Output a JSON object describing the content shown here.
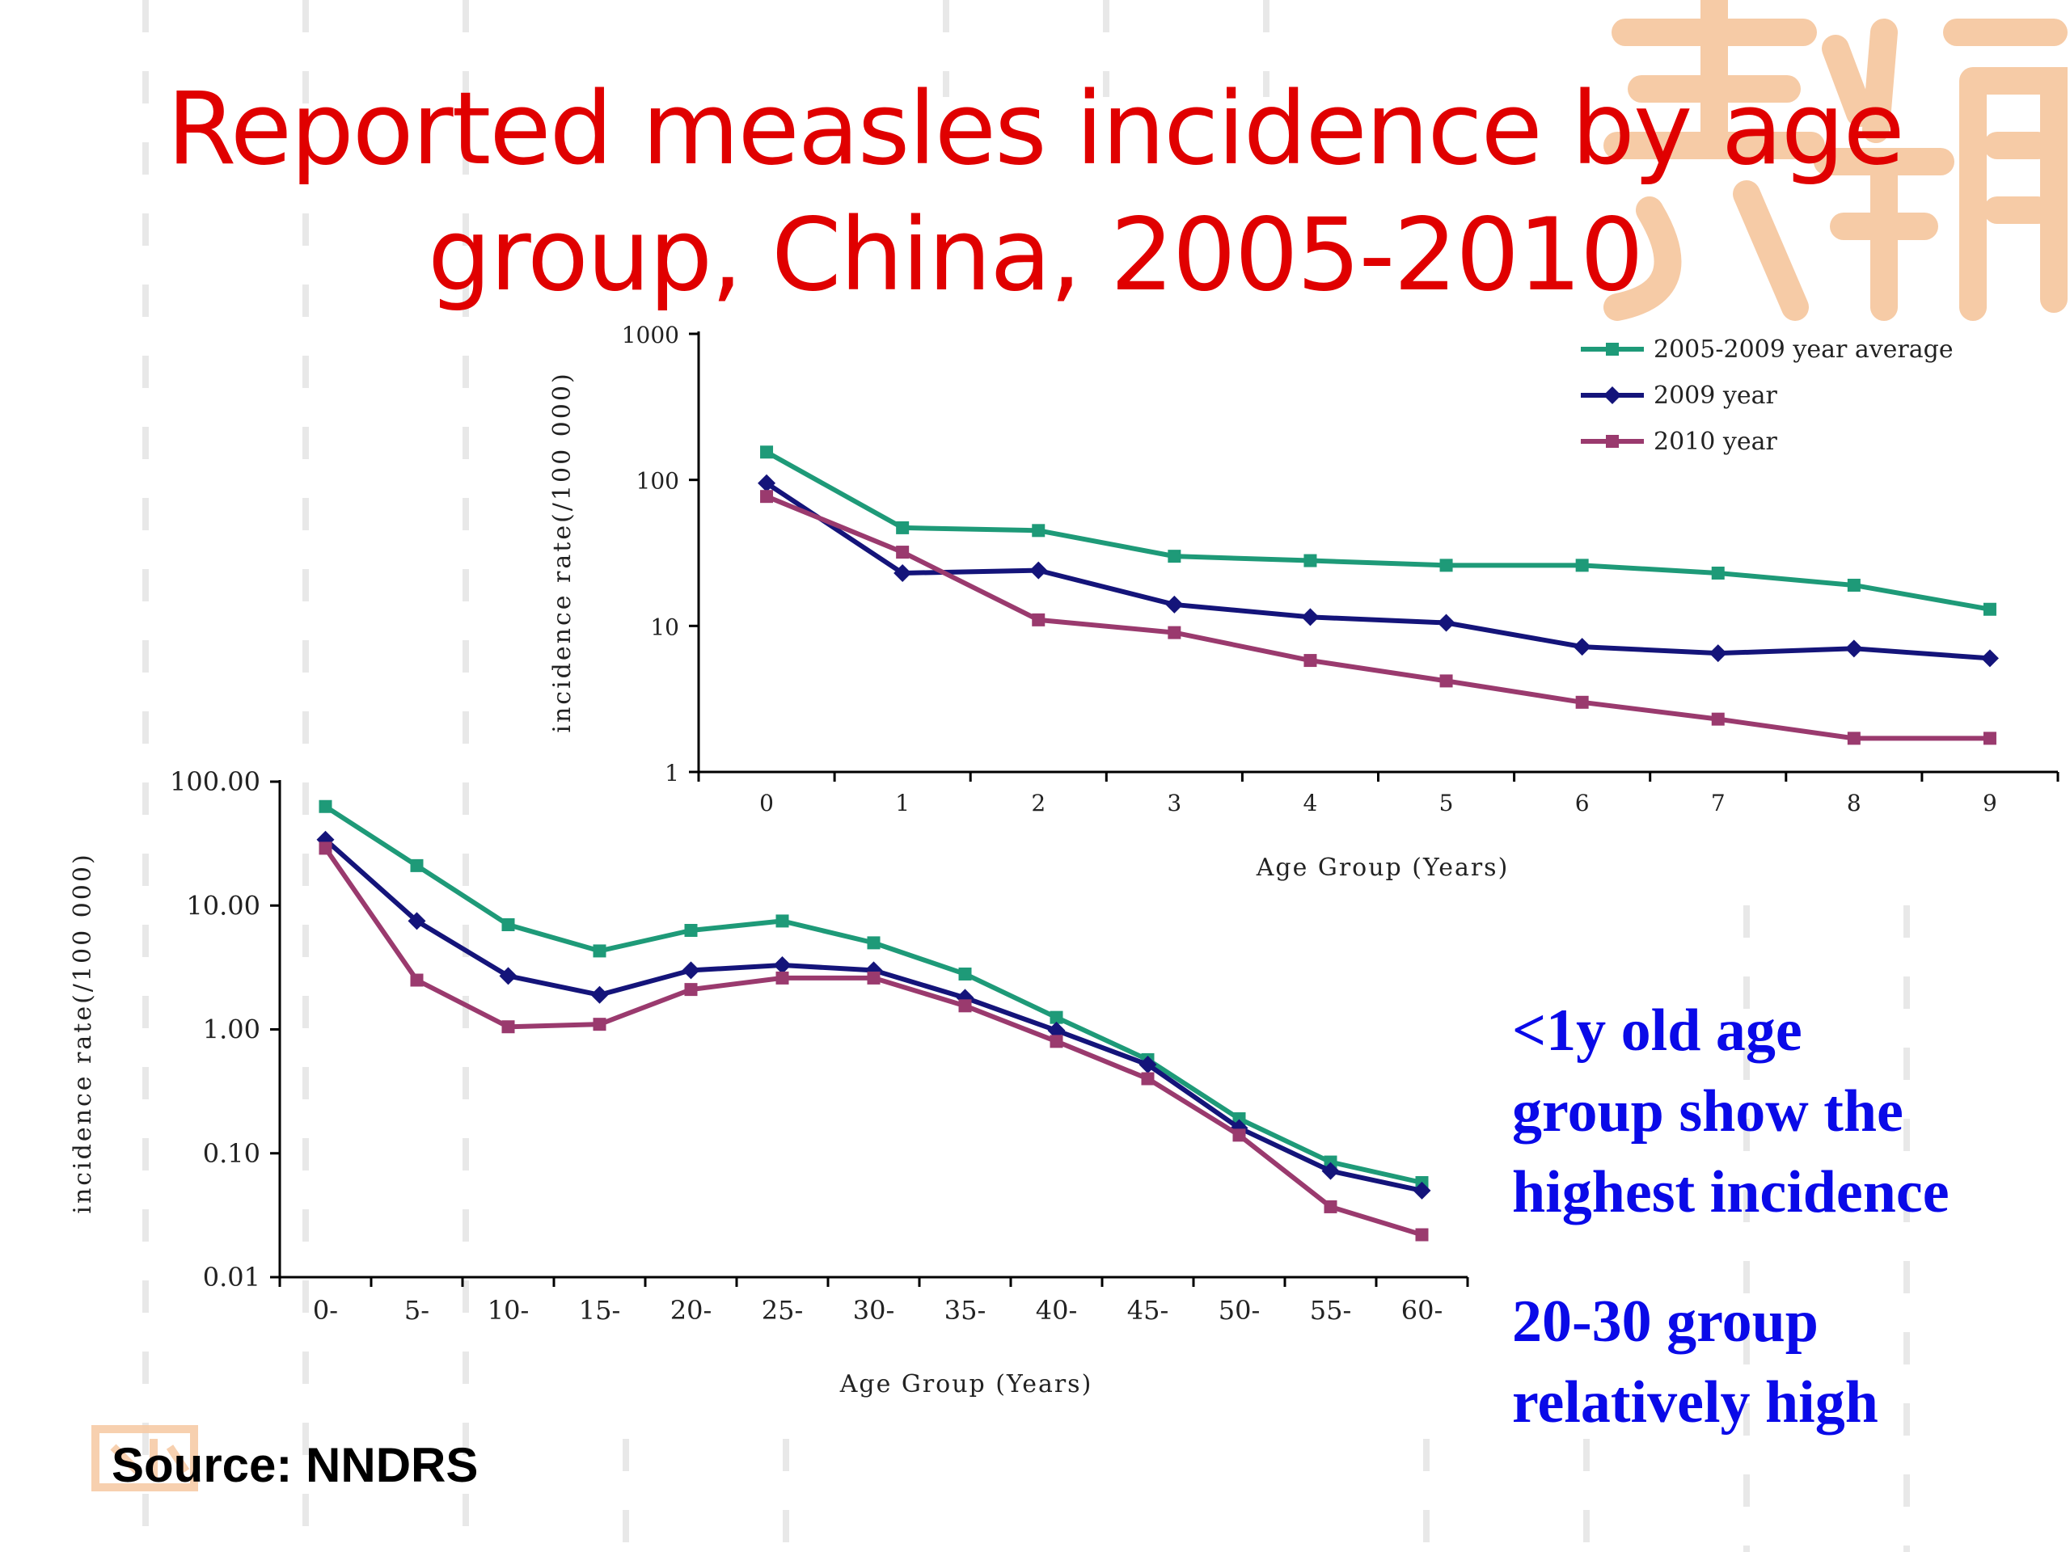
{
  "slide": {
    "title_line1": "Reported measles incidence by age",
    "title_line2": "group, China, 2005-2010",
    "callout1": [
      "<1y old  age",
      "group show the",
      "highest incidence"
    ],
    "callout2": [
      "20-30 group",
      "relatively high"
    ],
    "source": "Source: NNDRS",
    "colors": {
      "title": "#e00000",
      "callout": "#0a0ae8",
      "avg": "#1e9a78",
      "y2009": "#14147a",
      "y2010": "#9a3a6e"
    }
  },
  "chart_data": [
    {
      "type": "line",
      "title": "",
      "xlabel": "Age Group (Years)",
      "ylabel": "incidence rate(/100 000)",
      "yscale": "log",
      "ylim": [
        1,
        1000
      ],
      "yticks": [
        "1",
        "10",
        "100",
        "1000"
      ],
      "categories": [
        "0",
        "1",
        "2",
        "3",
        "4",
        "5",
        "6",
        "7",
        "8",
        "9"
      ],
      "legend_position": "top-right",
      "series": [
        {
          "name": "2005-2009 year average",
          "marker": "square",
          "values": [
            155,
            47,
            45,
            30,
            28,
            26,
            26,
            23,
            19,
            13
          ]
        },
        {
          "name": "2009 year",
          "marker": "diamond",
          "values": [
            95,
            23,
            24,
            14,
            11.5,
            10.5,
            7.2,
            6.5,
            7,
            6
          ]
        },
        {
          "name": "2010 year",
          "marker": "square",
          "values": [
            77,
            32,
            11,
            9,
            5.8,
            4.2,
            3,
            2.3,
            1.7,
            1.7
          ]
        }
      ]
    },
    {
      "type": "line",
      "title": "",
      "xlabel": "Age Group (Years)",
      "ylabel": "incidence rate(/100 000)",
      "yscale": "log",
      "ylim": [
        0.01,
        100
      ],
      "yticks": [
        "0.01",
        "0.10",
        "1.00",
        "10.00",
        "100.00"
      ],
      "categories": [
        "0-",
        "5-",
        "10-",
        "15-",
        "20-",
        "25-",
        "30-",
        "35-",
        "40-",
        "45-",
        "50-",
        "55-",
        "60-"
      ],
      "legend_position": "none",
      "series": [
        {
          "name": "2005-2009 year average",
          "marker": "square",
          "values": [
            63,
            21,
            7,
            4.3,
            6.3,
            7.5,
            5,
            2.8,
            1.25,
            0.57,
            0.19,
            0.085,
            0.058
          ]
        },
        {
          "name": "2009 year",
          "marker": "diamond",
          "values": [
            34,
            7.5,
            2.7,
            1.9,
            3,
            3.3,
            3,
            1.8,
            0.98,
            0.52,
            0.16,
            0.072,
            0.05
          ]
        },
        {
          "name": "2010 year",
          "marker": "square",
          "values": [
            29,
            2.5,
            1.05,
            1.1,
            2.1,
            2.6,
            2.6,
            1.55,
            0.8,
            0.4,
            0.14,
            0.037,
            0.022
          ]
        }
      ]
    }
  ]
}
